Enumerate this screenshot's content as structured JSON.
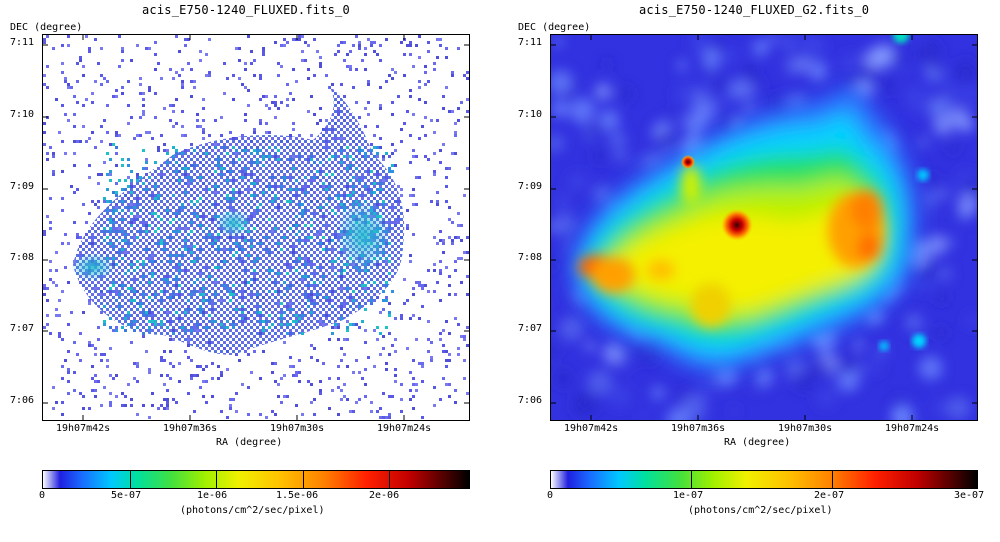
{
  "left_panel": {
    "title": "acis_E750-1240_FLUXED.fits_0",
    "ylabel": "DEC (degree)",
    "xlabel": "RA (degree)",
    "yticks": [
      "7:11",
      "7:10",
      "7:09",
      "7:08",
      "7:07",
      "7:06"
    ],
    "xticks": [
      "19h07m42s",
      "19h07m36s",
      "19h07m30s",
      "19h07m24s"
    ],
    "colorbar_ticks": [
      "0",
      "5e-07",
      "1e-06",
      "1.5e-06",
      "2e-06"
    ],
    "colorbar_label": "(photons/cm^2/sec/pixel)",
    "colormap": "rainbow (white-blue-cyan-green-yellow-orange-red-black)",
    "rendering": "raw counts, noisy"
  },
  "right_panel": {
    "title": "acis_E750-1240_FLUXED_G2.fits_0",
    "ylabel": "DEC (degree)",
    "xlabel": "RA (degree)",
    "yticks": [
      "7:11",
      "7:10",
      "7:09",
      "7:08",
      "7:07",
      "7:06"
    ],
    "xticks": [
      "19h07m42s",
      "19h07m36s",
      "19h07m30s",
      "19h07m24s"
    ],
    "colorbar_ticks": [
      "0",
      "1e-07",
      "2e-07",
      "3e-07"
    ],
    "colorbar_label": "(photons/cm^2/sec/pixel)",
    "colormap": "rainbow (white-blue-cyan-green-yellow-orange-red-black)",
    "rendering": "smoothed"
  }
}
